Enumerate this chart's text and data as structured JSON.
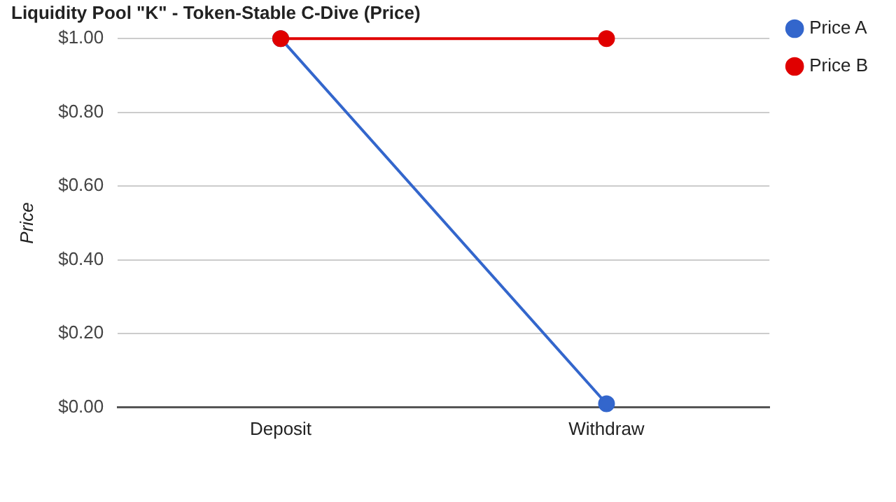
{
  "chart_data": {
    "type": "line",
    "title": "Liquidity Pool \"K\" - Token-Stable C-Dive (Price)",
    "ylabel": "Price",
    "categories": [
      "Deposit",
      "Withdraw"
    ],
    "series": [
      {
        "name": "Price A",
        "color": "#3366cc",
        "values": [
          1.0,
          0.01
        ]
      },
      {
        "name": "Price B",
        "color": "#e00000",
        "values": [
          1.0,
          1.0
        ]
      }
    ],
    "ylim": [
      0,
      1
    ],
    "yticks": [
      {
        "value": 0,
        "label": "$0.00"
      },
      {
        "value": 0.2,
        "label": "$0.20"
      },
      {
        "value": 0.4,
        "label": "$0.40"
      },
      {
        "value": 0.6,
        "label": "$0.60"
      },
      {
        "value": 0.8,
        "label": "$0.80"
      },
      {
        "value": 1,
        "label": "$1.00"
      }
    ],
    "grid": "y",
    "legend": "top right",
    "marker": "circle",
    "line_style": "solid"
  }
}
